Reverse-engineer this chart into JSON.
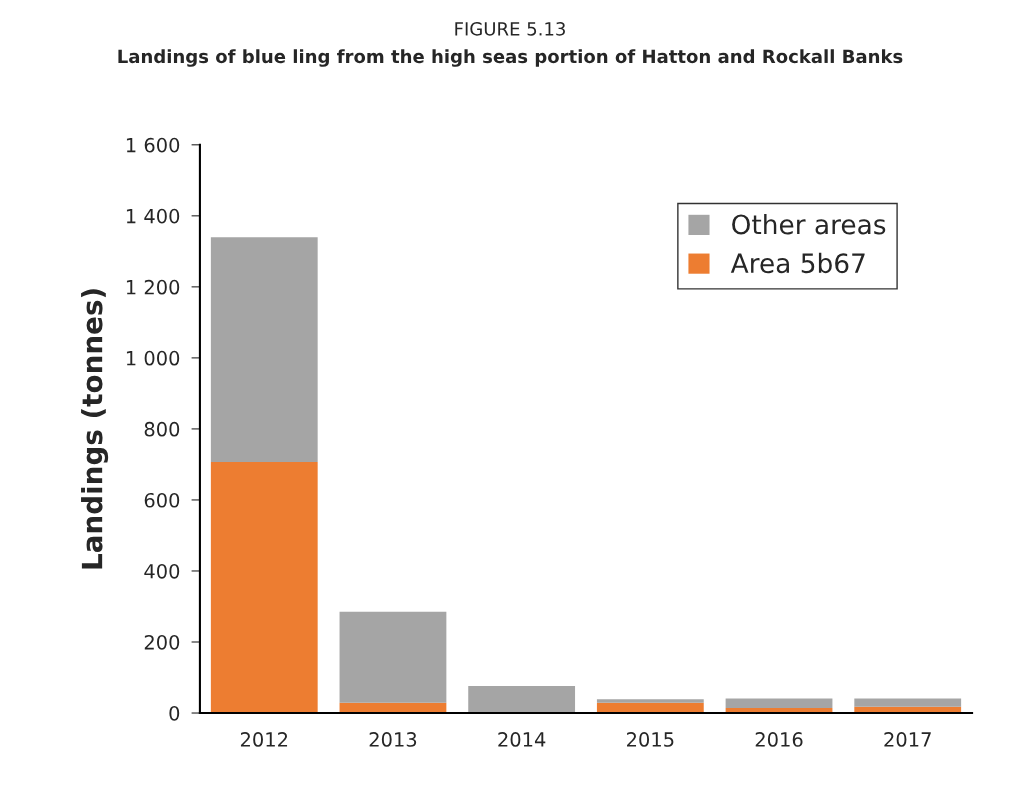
{
  "chart_data": {
    "type": "bar",
    "stacked": true,
    "title": "FIGURE 5.13",
    "subtitle": "Landings of blue ling from the high seas portion of Hatton and Rockall Banks",
    "ylabel": "Landings (tonnes)",
    "categories": [
      "2012",
      "2013",
      "2014",
      "2015",
      "2016",
      "2017"
    ],
    "series": [
      {
        "name": "Area 5b67",
        "color": "#ed7d31",
        "values": [
          707,
          29,
          0,
          29,
          14,
          18
        ]
      },
      {
        "name": "Other areas",
        "color": "#a5a5a5",
        "values": [
          633,
          256,
          76,
          10,
          27,
          23
        ]
      }
    ],
    "ylim": [
      0,
      1600
    ],
    "yticks": [
      0,
      200,
      400,
      600,
      800,
      {
        "value": 1000,
        "label": "1 000"
      },
      {
        "value": 1200,
        "label": "1 200"
      },
      {
        "value": 1400,
        "label": "1 400"
      },
      {
        "value": 1600,
        "label": "1 600"
      }
    ],
    "grid": false,
    "legend": "top right"
  }
}
